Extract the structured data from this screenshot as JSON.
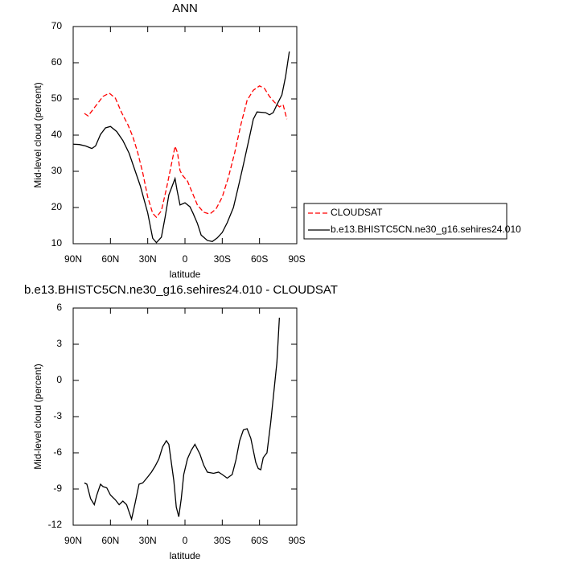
{
  "chart_data": [
    {
      "type": "line",
      "title": "ANN",
      "xlabel": "latitude",
      "ylabel": "Mid-level cloud (percent)",
      "xlim": [
        90,
        -90
      ],
      "xticks": [
        {
          "value": 90,
          "label": "90N"
        },
        {
          "value": 60,
          "label": "60N"
        },
        {
          "value": 30,
          "label": "30N"
        },
        0,
        {
          "value": -30,
          "label": "30S"
        },
        {
          "value": -60,
          "label": "60S"
        },
        {
          "value": -90,
          "label": "90S"
        }
      ],
      "ylim": [
        10,
        70
      ],
      "yticks": [
        10,
        20,
        30,
        40,
        50,
        60,
        70
      ],
      "series": [
        {
          "name": "CLOUDSAT",
          "color": "#ff0000",
          "dashed": true,
          "x": [
            81,
            78,
            72,
            66,
            61,
            56,
            51,
            46,
            42,
            38,
            34,
            30,
            26,
            23,
            19,
            15,
            11,
            8,
            6,
            4,
            2,
            -2,
            -6,
            -10,
            -15,
            -20,
            -25,
            -30,
            -35,
            -40,
            -45,
            -50,
            -55,
            -60,
            -64,
            -68,
            -72,
            -76,
            -79,
            -82
          ],
          "values": [
            46,
            45.3,
            48,
            50.7,
            51.6,
            50.2,
            46.2,
            42.9,
            39.6,
            35.1,
            29.6,
            22.9,
            18.4,
            17.3,
            19.1,
            25.1,
            31.8,
            36.9,
            35.1,
            30.2,
            28.9,
            27.3,
            24,
            20.7,
            18.7,
            18.2,
            19.6,
            22.9,
            28.4,
            35.1,
            42.9,
            49.6,
            52.4,
            53.6,
            52.9,
            50.7,
            49.1,
            47.8,
            48.4,
            44.4
          ]
        },
        {
          "name": "b.e13.BHISTC5CN.ne30_g16.sehires24.010",
          "color": "#000000",
          "dashed": false,
          "x": [
            90,
            85,
            80,
            75,
            72,
            68,
            64,
            60,
            55,
            50,
            45,
            40,
            36,
            30,
            26,
            23,
            19,
            16,
            13,
            8,
            6.5,
            4,
            0,
            -4,
            -6.5,
            -10,
            -13,
            -18,
            -22,
            -26,
            -30,
            -34,
            -39,
            -43,
            -47,
            -52,
            -55,
            -58,
            -65,
            -68,
            -71,
            -74,
            -78,
            -81,
            -84
          ],
          "values": [
            37.5,
            37.4,
            37,
            36.3,
            37,
            40.2,
            42,
            42.4,
            41,
            38.5,
            35,
            30,
            26,
            18.5,
            11.5,
            10.3,
            11.8,
            17.3,
            23.5,
            28,
            25,
            20.7,
            21.3,
            20.2,
            18.4,
            15.6,
            12.4,
            10.9,
            10.6,
            11.6,
            13.1,
            15.8,
            20,
            25.8,
            31.8,
            39.6,
            44.4,
            46.4,
            46.2,
            45.6,
            46.2,
            48.4,
            51.1,
            56.2,
            63.1
          ]
        }
      ]
    },
    {
      "type": "line",
      "title": "b.e13.BHISTC5CN.ne30_g16.sehires24.010 - CLOUDSAT",
      "xlabel": "latitude",
      "ylabel": "Mid-level cloud (percent)",
      "xlim": [
        90,
        -90
      ],
      "xticks": [
        {
          "value": 90,
          "label": "90N"
        },
        {
          "value": 60,
          "label": "60N"
        },
        {
          "value": 30,
          "label": "30N"
        },
        0,
        {
          "value": -30,
          "label": "30S"
        },
        {
          "value": -60,
          "label": "60S"
        },
        {
          "value": -90,
          "label": "90S"
        }
      ],
      "ylim": [
        -12,
        6
      ],
      "yticks": [
        -12,
        -9,
        -6,
        -3,
        0,
        3,
        6
      ],
      "series": [
        {
          "color": "#000000",
          "dashed": false,
          "x": [
            81,
            79,
            76,
            73,
            71,
            68,
            66,
            63,
            60,
            56,
            53,
            50,
            47,
            43,
            40,
            37,
            34,
            30,
            27,
            24,
            21,
            18,
            15,
            13,
            11,
            9,
            7,
            5,
            3,
            1,
            -2,
            -5,
            -8,
            -12,
            -15,
            -18,
            -23,
            -27,
            -30,
            -34,
            -38,
            -41,
            -44,
            -47,
            -50,
            -53,
            -57,
            -59,
            -61,
            -63,
            -66,
            -69,
            -72,
            -74,
            -76
          ],
          "values": [
            -8.5,
            -8.6,
            -9.8,
            -10.3,
            -9.5,
            -8.6,
            -8.8,
            -8.9,
            -9.5,
            -9.9,
            -10.3,
            -10,
            -10.3,
            -11.5,
            -10.1,
            -8.6,
            -8.5,
            -8,
            -7.6,
            -7.1,
            -6.5,
            -5.5,
            -5,
            -5.3,
            -6.8,
            -8.3,
            -10.5,
            -11.3,
            -9.8,
            -7.8,
            -6.5,
            -5.8,
            -5.3,
            -6.1,
            -7,
            -7.6,
            -7.7,
            -7.6,
            -7.8,
            -8.1,
            -7.8,
            -6.6,
            -5,
            -4.1,
            -4,
            -4.8,
            -6.8,
            -7.3,
            -7.4,
            -6.4,
            -6,
            -3.5,
            -0.5,
            1.5,
            5.2
          ]
        }
      ]
    }
  ]
}
